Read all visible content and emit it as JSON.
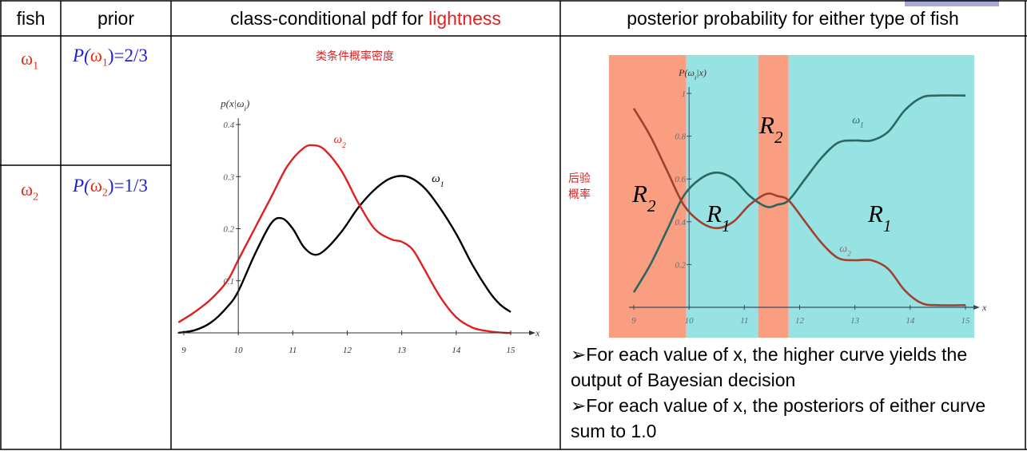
{
  "table": {
    "headers": {
      "fish": "fish",
      "prior": "prior",
      "pdf_prefix": "class-conditional pdf for ",
      "pdf_highlight": "lightness",
      "posterior": "posterior probability for either type of fish"
    },
    "rows": [
      {
        "fish": "ω",
        "fish_sub": "1",
        "prior_p": "P(",
        "prior_w": "ω",
        "prior_sub": "1",
        "prior_val": ")=2/3"
      },
      {
        "fish": "ω",
        "fish_sub": "2",
        "prior_p": "P(",
        "prior_w": "ω",
        "prior_sub": "2",
        "prior_val": ")=1/3"
      }
    ]
  },
  "pdf_panel": {
    "chinese_title": "类条件概率密度"
  },
  "posterior_panel": {
    "side_label_line1": "后验",
    "side_label_line2": "概率",
    "bullets": [
      "➢For each value of x, the higher curve yields the output of Bayesian decision",
      "➢For each value of x, the posteriors of either curve sum to 1.0"
    ]
  },
  "colors": {
    "accent_red": "#e02020",
    "prior_blue": "#2020d0",
    "region_r1": "#97e3e3",
    "region_r2": "#fa9e82",
    "omega1_curve": "#000000",
    "omega2_curve": "#e02020"
  },
  "chart_data": [
    {
      "type": "line",
      "title": "",
      "xlabel": "x",
      "ylabel": "p(x|ω_i)",
      "xlim": [
        9,
        15
      ],
      "ylim": [
        0,
        0.4
      ],
      "xticks": [
        9,
        10,
        11,
        12,
        13,
        14,
        15
      ],
      "yticks": [
        0.1,
        0.2,
        0.3,
        0.4
      ],
      "grid": false,
      "series": [
        {
          "name": "ω1",
          "color": "#000000",
          "x": [
            8.9,
            9.2,
            9.5,
            9.8,
            10.0,
            10.3,
            10.6,
            10.8,
            11.0,
            11.2,
            11.4,
            11.6,
            11.9,
            12.2,
            12.5,
            12.8,
            13.1,
            13.4,
            13.7,
            14.0,
            14.3,
            14.6,
            14.8,
            15.0
          ],
          "values": [
            0.0,
            0.005,
            0.02,
            0.05,
            0.08,
            0.15,
            0.21,
            0.22,
            0.2,
            0.165,
            0.15,
            0.16,
            0.195,
            0.24,
            0.275,
            0.297,
            0.3,
            0.28,
            0.24,
            0.19,
            0.13,
            0.08,
            0.055,
            0.04
          ]
        },
        {
          "name": "ω2",
          "color": "#e02020",
          "x": [
            8.9,
            9.2,
            9.5,
            9.8,
            10.0,
            10.3,
            10.6,
            10.9,
            11.2,
            11.4,
            11.6,
            11.9,
            12.2,
            12.5,
            12.8,
            13.0,
            13.2,
            13.4,
            13.7,
            14.0,
            14.3,
            14.6,
            14.9,
            15.0
          ],
          "values": [
            0.02,
            0.04,
            0.065,
            0.1,
            0.14,
            0.2,
            0.26,
            0.32,
            0.355,
            0.36,
            0.35,
            0.31,
            0.25,
            0.2,
            0.18,
            0.175,
            0.16,
            0.125,
            0.07,
            0.03,
            0.01,
            0.003,
            0.0,
            0.0
          ]
        }
      ]
    },
    {
      "type": "line",
      "title": "",
      "xlabel": "x",
      "ylabel": "P(ω_i|x)",
      "xlim": [
        9,
        15
      ],
      "ylim": [
        0,
        1
      ],
      "xticks": [
        9,
        10,
        11,
        12,
        13,
        14,
        15
      ],
      "yticks": [
        0.2,
        0.4,
        0.6,
        0.8,
        1
      ],
      "grid": false,
      "regions": [
        {
          "label": "R2",
          "from": 9,
          "to": 9.95
        },
        {
          "label": "R1",
          "from": 9.95,
          "to": 11.25
        },
        {
          "label": "R2",
          "from": 11.25,
          "to": 11.8
        },
        {
          "label": "R1",
          "from": 11.8,
          "to": 15
        }
      ],
      "series": [
        {
          "name": "ω1",
          "color": "#2b6660",
          "x": [
            9.0,
            9.3,
            9.6,
            9.9,
            10.2,
            10.5,
            10.8,
            11.1,
            11.4,
            11.6,
            11.8,
            12.1,
            12.4,
            12.7,
            13.0,
            13.3,
            13.6,
            13.9,
            14.2,
            14.5,
            15.0
          ],
          "values": [
            0.07,
            0.2,
            0.36,
            0.52,
            0.6,
            0.63,
            0.6,
            0.52,
            0.47,
            0.48,
            0.5,
            0.6,
            0.7,
            0.77,
            0.78,
            0.78,
            0.82,
            0.92,
            0.98,
            0.99,
            0.99
          ]
        },
        {
          "name": "ω2",
          "color": "#a04030",
          "x": [
            9.0,
            9.3,
            9.6,
            9.9,
            10.2,
            10.5,
            10.8,
            11.1,
            11.4,
            11.6,
            11.8,
            12.1,
            12.4,
            12.7,
            13.0,
            13.3,
            13.6,
            13.9,
            14.2,
            14.5,
            15.0
          ],
          "values": [
            0.93,
            0.8,
            0.64,
            0.48,
            0.4,
            0.37,
            0.4,
            0.48,
            0.53,
            0.52,
            0.5,
            0.4,
            0.3,
            0.23,
            0.22,
            0.22,
            0.18,
            0.08,
            0.02,
            0.01,
            0.01
          ]
        }
      ]
    }
  ]
}
